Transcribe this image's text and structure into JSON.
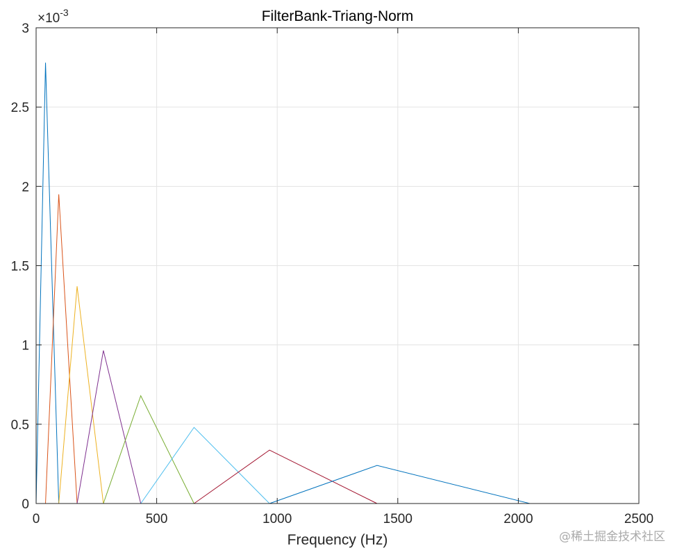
{
  "chart_data": {
    "type": "line",
    "title": "FilterBank-Triang-Norm",
    "xlabel": "Frequency (Hz)",
    "ylabel": "",
    "y_exponent_label": "×10",
    "y_exponent_power": "-3",
    "xlim": [
      0,
      2500
    ],
    "ylim": [
      0,
      0.003
    ],
    "grid": true,
    "x_ticks": [
      "0",
      "500",
      "1000",
      "1500",
      "2000",
      "2500"
    ],
    "x_tick_values": [
      0,
      500,
      1000,
      1500,
      2000,
      2500
    ],
    "y_ticks": [
      "0",
      "0.5",
      "1",
      "1.5",
      "2",
      "2.5",
      "3"
    ],
    "y_tick_values": [
      0,
      0.0005,
      0.001,
      0.0015,
      0.002,
      0.0025,
      0.003
    ],
    "series": [
      {
        "color": "#0072BD",
        "x": [
          0,
          39,
          94
        ],
        "y": [
          0,
          0.00278,
          0
        ]
      },
      {
        "color": "#D95319",
        "x": [
          39,
          94,
          170
        ],
        "y": [
          0,
          0.00195,
          0
        ]
      },
      {
        "color": "#EDB120",
        "x": [
          94,
          170,
          279
        ],
        "y": [
          0,
          0.00137,
          0
        ]
      },
      {
        "color": "#7E2F8E",
        "x": [
          170,
          279,
          434
        ],
        "y": [
          0,
          0.000965,
          0
        ]
      },
      {
        "color": "#77AC30",
        "x": [
          279,
          434,
          655
        ],
        "y": [
          0,
          0.00068,
          0
        ]
      },
      {
        "color": "#4DBEEE",
        "x": [
          434,
          655,
          968
        ],
        "y": [
          0,
          0.00048,
          0
        ]
      },
      {
        "color": "#A2142F",
        "x": [
          655,
          968,
          1414
        ],
        "y": [
          0,
          0.000337,
          0
        ]
      },
      {
        "color": "#0072BD",
        "x": [
          968,
          1414,
          2048
        ],
        "y": [
          0,
          0.00024,
          0
        ]
      }
    ]
  },
  "watermark": "@稀土掘金技术社区"
}
